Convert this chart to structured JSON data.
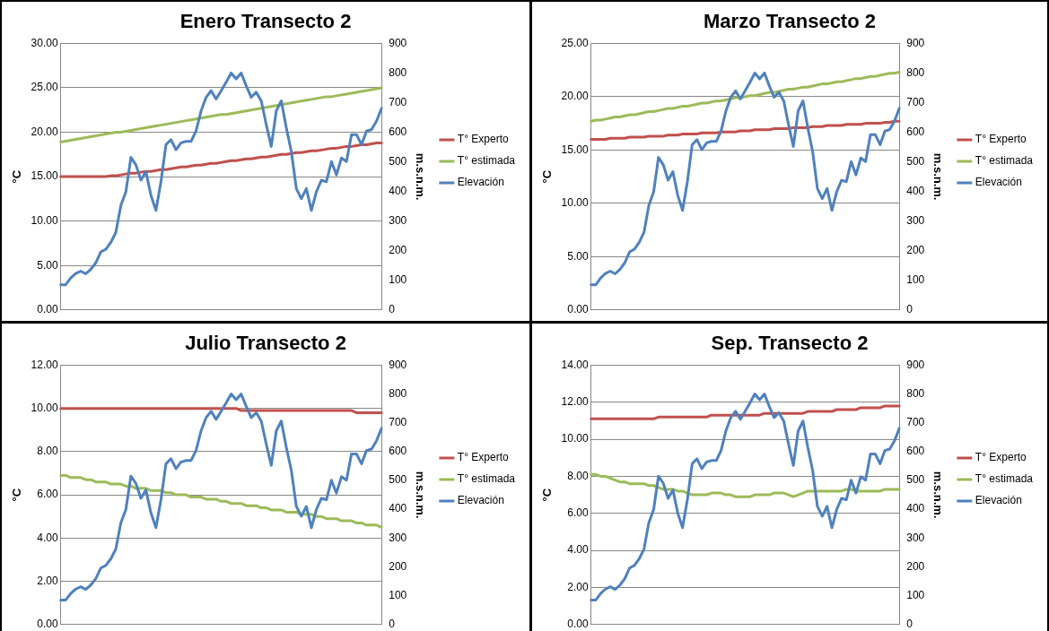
{
  "chart_data": [
    {
      "type": "line",
      "title": "Enero Transecto 2",
      "ylabel": "°C",
      "y2label": "m.s.n.m.",
      "legend": "right",
      "grid": "y",
      "categories": [
        null,
        null,
        null,
        null,
        null,
        null,
        null,
        null,
        null,
        null,
        null,
        null,
        null,
        null,
        null,
        null,
        null,
        null,
        null,
        null,
        null,
        null,
        null,
        null,
        null,
        null,
        null,
        null,
        null,
        null,
        null,
        null,
        null,
        null,
        null,
        null,
        null,
        null,
        null,
        null,
        null,
        null,
        null,
        null,
        null,
        null,
        null,
        null,
        null,
        null,
        null,
        null,
        null,
        null,
        null,
        null,
        null,
        null,
        null,
        null,
        null,
        null,
        null,
        null,
        null
      ],
      "ylim": [
        0,
        30
      ],
      "yticks": [
        {
          "value": 0,
          "label": "0.00"
        },
        {
          "value": 5,
          "label": "5.00"
        },
        {
          "value": 10,
          "label": "10.00"
        },
        {
          "value": 15,
          "label": "15.00"
        },
        {
          "value": 20,
          "label": "20.00"
        },
        {
          "value": 25,
          "label": "25.00"
        },
        {
          "value": 30,
          "label": "30.00"
        }
      ],
      "y2lim": [
        0,
        900
      ],
      "y2ticks": [
        0,
        100,
        200,
        300,
        400,
        500,
        600,
        700,
        800,
        900
      ],
      "series": [
        {
          "name": "T° Experto",
          "color": "#c0504d",
          "values": [
            15.0,
            15.0,
            15.0,
            15.0,
            15.0,
            15.0,
            15.0,
            15.0,
            15.0,
            15.0,
            15.1,
            15.1,
            15.2,
            15.3,
            15.4,
            15.4,
            15.5,
            15.6,
            15.6,
            15.7,
            15.8,
            15.8,
            15.9,
            16.0,
            16.1,
            16.1,
            16.2,
            16.3,
            16.3,
            16.4,
            16.5,
            16.5,
            16.6,
            16.7,
            16.8,
            16.8,
            16.9,
            17.0,
            17.0,
            17.1,
            17.2,
            17.2,
            17.3,
            17.4,
            17.5,
            17.5,
            17.6,
            17.7,
            17.7,
            17.8,
            17.9,
            17.9,
            18.0,
            18.1,
            18.2,
            18.2,
            18.3,
            18.4,
            18.4,
            18.5,
            18.6,
            18.6,
            18.7,
            18.8,
            18.8
          ]
        },
        {
          "name": "T° estimada",
          "color": "#9bbb59",
          "values": [
            18.9,
            19.0,
            19.1,
            19.2,
            19.3,
            19.4,
            19.5,
            19.6,
            19.7,
            19.8,
            19.9,
            20.0,
            20.0,
            20.1,
            20.2,
            20.3,
            20.4,
            20.5,
            20.6,
            20.7,
            20.8,
            20.9,
            21.0,
            21.1,
            21.2,
            21.3,
            21.4,
            21.5,
            21.6,
            21.7,
            21.8,
            21.9,
            22.0,
            22.0,
            22.1,
            22.2,
            22.3,
            22.4,
            22.5,
            22.6,
            22.7,
            22.8,
            22.9,
            23.0,
            23.1,
            23.2,
            23.3,
            23.4,
            23.5,
            23.6,
            23.7,
            23.8,
            23.9,
            24.0,
            24.0,
            24.1,
            24.2,
            24.3,
            24.4,
            24.5,
            24.6,
            24.7,
            24.8,
            24.9,
            25.0
          ]
        },
        {
          "name": "Elevación",
          "color": "#4f81bd",
          "axis": "y2",
          "values": [
            85,
            85,
            108,
            123,
            131,
            122,
            137,
            159,
            196,
            205,
            228,
            262,
            353,
            399,
            515,
            490,
            438,
            467,
            387,
            336,
            433,
            558,
            575,
            541,
            564,
            569,
            569,
            604,
            672,
            718,
            740,
            712,
            740,
            769,
            800,
            780,
            800,
            757,
            718,
            735,
            706,
            626,
            552,
            672,
            706,
            615,
            535,
            410,
            376,
            410,
            336,
            399,
            438,
            433,
            501,
            456,
            513,
            501,
            592,
            592,
            558,
            604,
            609,
            638,
            681
          ]
        }
      ]
    },
    {
      "type": "line",
      "title": "Marzo Transecto 2",
      "ylabel": "°C",
      "y2label": "m.s.n.m.",
      "legend": "right",
      "grid": "y",
      "categories": [
        null,
        null,
        null,
        null,
        null,
        null,
        null,
        null,
        null,
        null,
        null,
        null,
        null,
        null,
        null,
        null,
        null,
        null,
        null,
        null,
        null,
        null,
        null,
        null,
        null,
        null,
        null,
        null,
        null,
        null,
        null,
        null,
        null,
        null,
        null,
        null,
        null,
        null,
        null,
        null,
        null,
        null,
        null,
        null,
        null,
        null,
        null,
        null,
        null,
        null,
        null,
        null,
        null,
        null,
        null,
        null,
        null,
        null,
        null,
        null,
        null,
        null,
        null,
        null,
        null
      ],
      "ylim": [
        0,
        25
      ],
      "yticks": [
        {
          "value": 0,
          "label": "0.00"
        },
        {
          "value": 5,
          "label": "5.00"
        },
        {
          "value": 10,
          "label": "10.00"
        },
        {
          "value": 15,
          "label": "15.00"
        },
        {
          "value": 20,
          "label": "20.00"
        },
        {
          "value": 25,
          "label": "25.00"
        }
      ],
      "y2lim": [
        0,
        900
      ],
      "y2ticks": [
        0,
        100,
        200,
        300,
        400,
        500,
        600,
        700,
        800,
        900
      ],
      "series": [
        {
          "name": "T° Experto",
          "color": "#c0504d",
          "values": [
            16.0,
            16.0,
            16.0,
            16.0,
            16.1,
            16.1,
            16.1,
            16.1,
            16.2,
            16.2,
            16.2,
            16.2,
            16.3,
            16.3,
            16.3,
            16.3,
            16.4,
            16.4,
            16.4,
            16.5,
            16.5,
            16.5,
            16.5,
            16.6,
            16.6,
            16.6,
            16.6,
            16.7,
            16.7,
            16.7,
            16.7,
            16.8,
            16.8,
            16.8,
            16.9,
            16.9,
            16.9,
            16.9,
            17.0,
            17.0,
            17.0,
            17.0,
            17.1,
            17.1,
            17.1,
            17.1,
            17.2,
            17.2,
            17.2,
            17.3,
            17.3,
            17.3,
            17.3,
            17.4,
            17.4,
            17.4,
            17.4,
            17.5,
            17.5,
            17.5,
            17.5,
            17.6,
            17.6,
            17.7,
            17.7
          ]
        },
        {
          "name": "T° estimada",
          "color": "#9bbb59",
          "values": [
            17.7,
            17.8,
            17.8,
            17.9,
            18.0,
            18.1,
            18.1,
            18.2,
            18.3,
            18.3,
            18.4,
            18.5,
            18.6,
            18.6,
            18.7,
            18.8,
            18.9,
            18.9,
            19.0,
            19.1,
            19.1,
            19.2,
            19.3,
            19.4,
            19.4,
            19.5,
            19.6,
            19.6,
            19.7,
            19.8,
            19.9,
            19.9,
            20.0,
            20.1,
            20.1,
            20.2,
            20.3,
            20.4,
            20.4,
            20.5,
            20.6,
            20.7,
            20.7,
            20.8,
            20.9,
            20.9,
            21.0,
            21.1,
            21.2,
            21.2,
            21.3,
            21.4,
            21.4,
            21.5,
            21.6,
            21.7,
            21.7,
            21.8,
            21.9,
            21.9,
            22.0,
            22.1,
            22.2,
            22.2,
            22.3
          ]
        },
        {
          "name": "Elevación",
          "color": "#4f81bd",
          "axis": "y2",
          "values": [
            85,
            85,
            108,
            123,
            131,
            122,
            137,
            159,
            196,
            205,
            228,
            262,
            353,
            399,
            515,
            490,
            438,
            467,
            387,
            336,
            433,
            558,
            575,
            541,
            564,
            569,
            569,
            604,
            672,
            718,
            740,
            712,
            740,
            769,
            800,
            780,
            800,
            757,
            718,
            735,
            706,
            626,
            552,
            672,
            706,
            615,
            535,
            410,
            376,
            410,
            336,
            399,
            438,
            433,
            501,
            456,
            513,
            501,
            592,
            592,
            558,
            604,
            609,
            638,
            681
          ]
        }
      ]
    },
    {
      "type": "line",
      "title": "Julio Transecto 2",
      "ylabel": "°C",
      "y2label": "m.s.n.m.",
      "legend": "right",
      "grid": "y",
      "categories": [
        null,
        null,
        null,
        null,
        null,
        null,
        null,
        null,
        null,
        null,
        null,
        null,
        null,
        null,
        null,
        null,
        null,
        null,
        null,
        null,
        null,
        null,
        null,
        null,
        null,
        null,
        null,
        null,
        null,
        null,
        null,
        null,
        null,
        null,
        null,
        null,
        null,
        null,
        null,
        null,
        null,
        null,
        null,
        null,
        null,
        null,
        null,
        null,
        null,
        null,
        null,
        null,
        null,
        null,
        null,
        null,
        null,
        null,
        null,
        null,
        null,
        null,
        null,
        null,
        null
      ],
      "ylim": [
        0,
        12
      ],
      "yticks": [
        {
          "value": 0,
          "label": "0.00"
        },
        {
          "value": 2,
          "label": "2.00"
        },
        {
          "value": 4,
          "label": "4.00"
        },
        {
          "value": 6,
          "label": "6.00"
        },
        {
          "value": 8,
          "label": "8.00"
        },
        {
          "value": 10,
          "label": "10.00"
        },
        {
          "value": 12,
          "label": "12.00"
        }
      ],
      "y2lim": [
        0,
        900
      ],
      "y2ticks": [
        0,
        100,
        200,
        300,
        400,
        500,
        600,
        700,
        800,
        900
      ],
      "series": [
        {
          "name": "T° Experto",
          "color": "#c0504d",
          "values": [
            10.0,
            10.0,
            10.0,
            10.0,
            10.0,
            10.0,
            10.0,
            10.0,
            10.0,
            10.0,
            10.0,
            10.0,
            10.0,
            10.0,
            10.0,
            10.0,
            10.0,
            10.0,
            10.0,
            10.0,
            10.0,
            10.0,
            10.0,
            10.0,
            10.0,
            10.0,
            10.0,
            10.0,
            10.0,
            10.0,
            10.0,
            10.0,
            10.0,
            10.0,
            10.0,
            10.0,
            9.9,
            9.9,
            9.9,
            9.9,
            9.9,
            9.9,
            9.9,
            9.9,
            9.9,
            9.9,
            9.9,
            9.9,
            9.9,
            9.9,
            9.9,
            9.9,
            9.9,
            9.9,
            9.9,
            9.9,
            9.9,
            9.9,
            9.9,
            9.8,
            9.8,
            9.8,
            9.8,
            9.8,
            9.8
          ]
        },
        {
          "name": "T° estimada",
          "color": "#9bbb59",
          "values": [
            6.9,
            6.9,
            6.8,
            6.8,
            6.8,
            6.7,
            6.7,
            6.6,
            6.6,
            6.6,
            6.5,
            6.5,
            6.5,
            6.4,
            6.4,
            6.3,
            6.3,
            6.3,
            6.2,
            6.2,
            6.2,
            6.1,
            6.1,
            6.0,
            6.0,
            6.0,
            5.9,
            5.9,
            5.9,
            5.8,
            5.8,
            5.8,
            5.7,
            5.7,
            5.6,
            5.6,
            5.6,
            5.5,
            5.5,
            5.5,
            5.4,
            5.4,
            5.3,
            5.3,
            5.3,
            5.2,
            5.2,
            5.2,
            5.1,
            5.1,
            5.1,
            5.0,
            5.0,
            4.9,
            4.9,
            4.9,
            4.8,
            4.8,
            4.8,
            4.7,
            4.7,
            4.6,
            4.6,
            4.6,
            4.5
          ]
        },
        {
          "name": "Elevación",
          "color": "#4f81bd",
          "axis": "y2",
          "values": [
            85,
            85,
            108,
            123,
            131,
            122,
            137,
            159,
            196,
            205,
            228,
            262,
            353,
            399,
            515,
            490,
            438,
            467,
            387,
            336,
            433,
            558,
            575,
            541,
            564,
            569,
            569,
            604,
            672,
            718,
            740,
            712,
            740,
            769,
            800,
            780,
            800,
            757,
            718,
            735,
            706,
            626,
            552,
            672,
            706,
            615,
            535,
            410,
            376,
            410,
            336,
            399,
            438,
            433,
            501,
            456,
            513,
            501,
            592,
            592,
            558,
            604,
            609,
            638,
            681
          ]
        }
      ]
    },
    {
      "type": "line",
      "title": "Sep. Transecto 2",
      "ylabel": "°C",
      "y2label": "m.s.n.m.",
      "legend": "right",
      "grid": "y",
      "categories": [
        null,
        null,
        null,
        null,
        null,
        null,
        null,
        null,
        null,
        null,
        null,
        null,
        null,
        null,
        null,
        null,
        null,
        null,
        null,
        null,
        null,
        null,
        null,
        null,
        null,
        null,
        null,
        null,
        null,
        null,
        null,
        null,
        null,
        null,
        null,
        null,
        null,
        null,
        null,
        null,
        null,
        null,
        null,
        null,
        null,
        null,
        null,
        null,
        null,
        null,
        null,
        null,
        null,
        null,
        null,
        null,
        null,
        null,
        null,
        null,
        null,
        null,
        null,
        null,
        null
      ],
      "ylim": [
        0,
        14
      ],
      "yticks": [
        {
          "value": 0,
          "label": "0.00"
        },
        {
          "value": 2,
          "label": "2.00"
        },
        {
          "value": 4,
          "label": "4.00"
        },
        {
          "value": 6,
          "label": "6.00"
        },
        {
          "value": 8,
          "label": "8.00"
        },
        {
          "value": 10,
          "label": "10.00"
        },
        {
          "value": 12,
          "label": "12.00"
        },
        {
          "value": 14,
          "label": "14.00"
        }
      ],
      "y2lim": [
        0,
        900
      ],
      "y2ticks": [
        0,
        100,
        200,
        300,
        400,
        500,
        600,
        700,
        800,
        900
      ],
      "series": [
        {
          "name": "T° Experto",
          "color": "#c0504d",
          "values": [
            11.1,
            11.1,
            11.1,
            11.1,
            11.1,
            11.1,
            11.1,
            11.1,
            11.1,
            11.1,
            11.1,
            11.1,
            11.1,
            11.1,
            11.2,
            11.2,
            11.2,
            11.2,
            11.2,
            11.2,
            11.2,
            11.2,
            11.2,
            11.2,
            11.2,
            11.3,
            11.3,
            11.3,
            11.3,
            11.3,
            11.3,
            11.3,
            11.3,
            11.3,
            11.3,
            11.3,
            11.4,
            11.4,
            11.4,
            11.4,
            11.4,
            11.4,
            11.4,
            11.4,
            11.4,
            11.5,
            11.5,
            11.5,
            11.5,
            11.5,
            11.5,
            11.6,
            11.6,
            11.6,
            11.6,
            11.6,
            11.7,
            11.7,
            11.7,
            11.7,
            11.7,
            11.8,
            11.8,
            11.8,
            11.8
          ]
        },
        {
          "name": "T° estimada",
          "color": "#9bbb59",
          "values": [
            8.1,
            8.1,
            8.0,
            8.0,
            7.9,
            7.8,
            7.7,
            7.7,
            7.6,
            7.6,
            7.6,
            7.6,
            7.5,
            7.5,
            7.4,
            7.3,
            7.3,
            7.3,
            7.2,
            7.2,
            7.1,
            7.0,
            7.0,
            7.0,
            7.0,
            7.1,
            7.1,
            7.1,
            7.0,
            7.0,
            6.9,
            6.9,
            6.9,
            6.9,
            7.0,
            7.0,
            7.0,
            7.0,
            7.1,
            7.1,
            7.1,
            7.0,
            6.9,
            7.0,
            7.1,
            7.2,
            7.2,
            7.2,
            7.2,
            7.2,
            7.2,
            7.2,
            7.2,
            7.3,
            7.3,
            7.2,
            7.2,
            7.2,
            7.2,
            7.2,
            7.2,
            7.3,
            7.3,
            7.3,
            7.3
          ]
        },
        {
          "name": "Elevación",
          "color": "#4f81bd",
          "axis": "y2",
          "values": [
            85,
            85,
            108,
            123,
            131,
            122,
            137,
            159,
            196,
            205,
            228,
            262,
            353,
            399,
            515,
            490,
            438,
            467,
            387,
            336,
            433,
            558,
            575,
            541,
            564,
            569,
            569,
            604,
            672,
            718,
            740,
            712,
            740,
            769,
            800,
            780,
            800,
            757,
            718,
            735,
            706,
            626,
            552,
            672,
            706,
            615,
            535,
            410,
            376,
            410,
            336,
            399,
            438,
            433,
            501,
            456,
            513,
            501,
            592,
            592,
            558,
            604,
            609,
            638,
            681
          ]
        }
      ]
    }
  ]
}
